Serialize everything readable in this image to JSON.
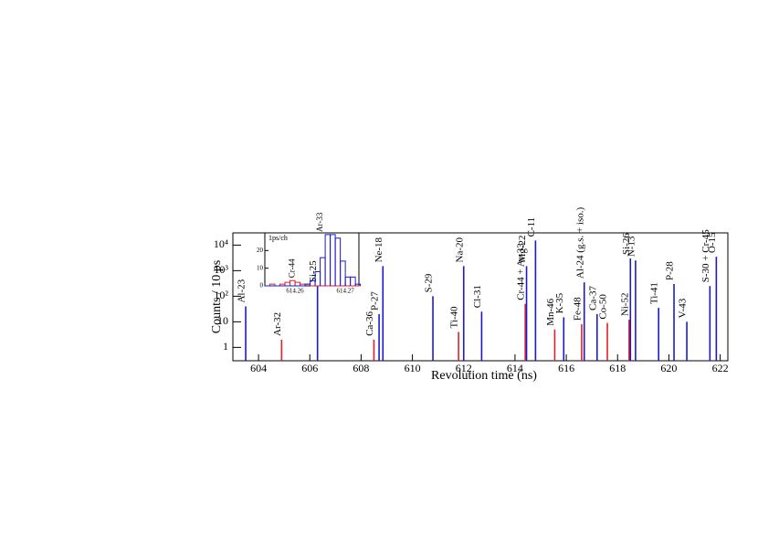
{
  "chart_data": [
    {
      "type": "bar",
      "log_y": true,
      "xlabel": "Revolution time (ns)",
      "ylabel": "Counts / 10 ps",
      "xlim": [
        603,
        622.3
      ],
      "xticks": [
        604,
        606,
        608,
        610,
        612,
        614,
        616,
        618,
        620,
        622
      ],
      "ylim": [
        0.3,
        30000
      ],
      "yticks": [
        1,
        10,
        {
          "value": 100,
          "label": "10²"
        },
        {
          "value": 1000,
          "label": "10³"
        },
        {
          "value": 10000,
          "label": "10⁴"
        }
      ],
      "categories": [
        "Al-23",
        "Ar-32",
        "Si-25",
        "Ca-36",
        "P-27",
        "Ne-18",
        "S-29",
        "Ti-40",
        "Na-20",
        "Cl-31",
        "Cr-44 + Ar-33",
        "Mg-22",
        "C-11",
        "Mn-46",
        "K-35",
        "Fe-48",
        "Al-24 (g.s. + iso.)",
        "Ca-37",
        "Co-50",
        "Ni-52",
        "Si-26",
        "N-13",
        "Ti-41",
        "P-28",
        "V-43",
        "S-30 + Cr-45",
        "O-15"
      ],
      "x": [
        603.5,
        604.9,
        606.3,
        608.5,
        608.7,
        608.85,
        610.8,
        611.8,
        612.0,
        612.7,
        614.4,
        614.45,
        614.8,
        615.55,
        615.9,
        616.6,
        616.7,
        617.2,
        617.6,
        618.45,
        618.5,
        618.7,
        619.6,
        620.2,
        620.7,
        621.6,
        621.85
      ],
      "values": [
        40,
        2,
        250,
        2,
        20,
        1500,
        100,
        4,
        1500,
        25,
        50,
        1500,
        15000,
        5,
        15,
        8,
        350,
        20,
        9,
        12,
        3000,
        2500,
        35,
        300,
        10,
        250,
        3500
      ],
      "colors": [
        "#1a1acc",
        "#e0202a",
        "#1a1acc",
        "#e0202a",
        "#1a1acc",
        "#1a1acc",
        "#1a1acc",
        "#e0202a",
        "#1a1acc",
        "#1a1acc",
        "#e0202a",
        "#1a1acc",
        "#1a1acc",
        "#e0202a",
        "#1a1acc",
        "#e0202a",
        "#1a1acc",
        "#1a1acc",
        "#e0202a",
        "#e0202a",
        "#1a1acc",
        "#1a1acc",
        "#1a1acc",
        "#1a1acc",
        "#1a1acc",
        "#1a1acc",
        "#1a1acc"
      ]
    },
    {
      "type": "histogram",
      "annotation": "1ps/ch",
      "bins": [
        614.254,
        614.255,
        614.256,
        614.257,
        614.258,
        614.259,
        614.26,
        614.261,
        614.262,
        614.263,
        614.264,
        614.265,
        614.266,
        614.267,
        614.268,
        614.269,
        614.27,
        614.271,
        614.272,
        614.273
      ],
      "xlim": [
        614.254,
        614.2727
      ],
      "xticks": [
        614.26,
        614.27
      ],
      "ylim": [
        0,
        30
      ],
      "yticks": [
        0,
        10,
        20
      ],
      "series": [
        {
          "name": "Cr-44",
          "color": "#e0202a",
          "values": [
            0,
            1,
            0,
            1,
            2,
            3,
            2,
            1,
            1,
            0,
            0,
            0,
            0,
            0,
            0,
            0,
            0,
            0,
            0
          ]
        },
        {
          "name": "Ar-33",
          "color": "#1a1acc",
          "values": [
            0,
            0,
            0,
            0,
            0,
            0,
            0,
            0,
            1,
            3,
            8,
            16,
            29,
            29,
            27,
            14,
            5,
            5,
            1
          ]
        }
      ]
    }
  ]
}
